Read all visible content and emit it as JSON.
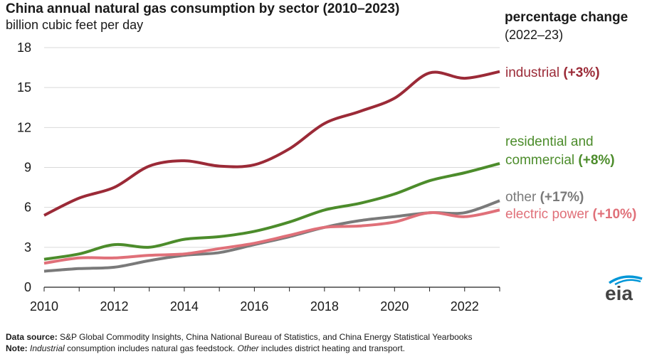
{
  "header": {
    "title": "China annual natural gas consumption by sector (2010–2023)",
    "subtitle": "billion cubic feet per day",
    "pct_title": "percentage change",
    "pct_period": "(2022–23)"
  },
  "footer": {
    "source_label": "Data source:",
    "source_text": " S&P Global Commodity Insights, China National Bureau of Statistics, and China Energy Statistical Yearbooks",
    "note_label": "Note:",
    "note_em1": "Industrial",
    "note_mid": " consumption includes natural gas feedstock. ",
    "note_em2": "Other",
    "note_end": " includes district heating and transport."
  },
  "logo": {
    "text": "eia",
    "color": "#0096d7"
  },
  "chart_data": {
    "type": "line",
    "title": "China annual natural gas consumption by sector (2010–2023)",
    "ylabel": "billion cubic feet per day",
    "x": [
      2010,
      2011,
      2012,
      2013,
      2014,
      2015,
      2016,
      2017,
      2018,
      2019,
      2020,
      2021,
      2022,
      2023
    ],
    "xlim": [
      2010,
      2023
    ],
    "ylim": [
      0,
      18
    ],
    "xticks": [
      "2010",
      "2012",
      "2014",
      "2016",
      "2018",
      "2020",
      "2022"
    ],
    "yticks": [
      "0",
      "3",
      "6",
      "9",
      "12",
      "15",
      "18"
    ],
    "grid": true,
    "series": [
      {
        "name": "industrial",
        "change": "(+3%)",
        "color": "#9b2a37",
        "values": [
          5.4,
          6.7,
          7.5,
          9.1,
          9.5,
          9.1,
          9.2,
          10.4,
          12.3,
          13.2,
          14.2,
          16.1,
          15.7,
          16.2
        ]
      },
      {
        "name": "residential and commercial",
        "name_line1": "residential and",
        "name_line2": "commercial",
        "change": "(+8%)",
        "color": "#4c8c2b",
        "values": [
          2.1,
          2.5,
          3.2,
          3.0,
          3.6,
          3.8,
          4.2,
          4.9,
          5.8,
          6.3,
          7.0,
          8.0,
          8.6,
          9.3
        ]
      },
      {
        "name": "other",
        "change": "(+17%)",
        "color": "#7a7a7a",
        "values": [
          1.2,
          1.4,
          1.5,
          2.0,
          2.4,
          2.6,
          3.2,
          3.8,
          4.5,
          5.0,
          5.3,
          5.6,
          5.6,
          6.5
        ]
      },
      {
        "name": "electric power",
        "change": "(+10%)",
        "color": "#e07079",
        "values": [
          1.8,
          2.2,
          2.2,
          2.4,
          2.5,
          2.9,
          3.3,
          3.9,
          4.5,
          4.6,
          4.9,
          5.6,
          5.3,
          5.8
        ]
      }
    ]
  }
}
